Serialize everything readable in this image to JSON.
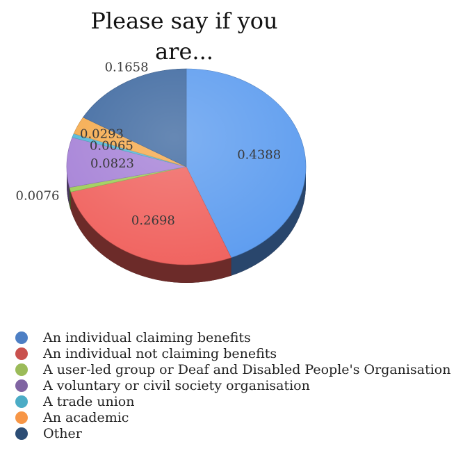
{
  "chart_data": {
    "type": "pie",
    "title": "Please say if you are...",
    "categories": [
      "An individual claiming benefits",
      "An individual not claiming benefits",
      "A user-led group or Deaf and Disabled People's Organisation",
      "A voluntary or civil society organisation",
      "A trade union",
      "An academic",
      "Other"
    ],
    "values": [
      0.4388,
      0.2698,
      0.0076,
      0.0823,
      0.0065,
      0.0293,
      0.1658
    ],
    "value_labels": [
      "0.4388",
      "0.2698",
      "0.0076",
      "0.0823",
      "0.0065",
      "0.0293",
      "0.1658"
    ],
    "colors": [
      "#5b9bef",
      "#f0605c",
      "#9ccc54",
      "#a47fd6",
      "#4fb6d8",
      "#f5a94a",
      "#3c679f"
    ],
    "legend_colors": [
      "#4d7fc4",
      "#c9514e",
      "#9bbb59",
      "#8064a2",
      "#4bacc6",
      "#f79646",
      "#2c4d75"
    ],
    "legend_position": "bottom",
    "style": "3d"
  }
}
